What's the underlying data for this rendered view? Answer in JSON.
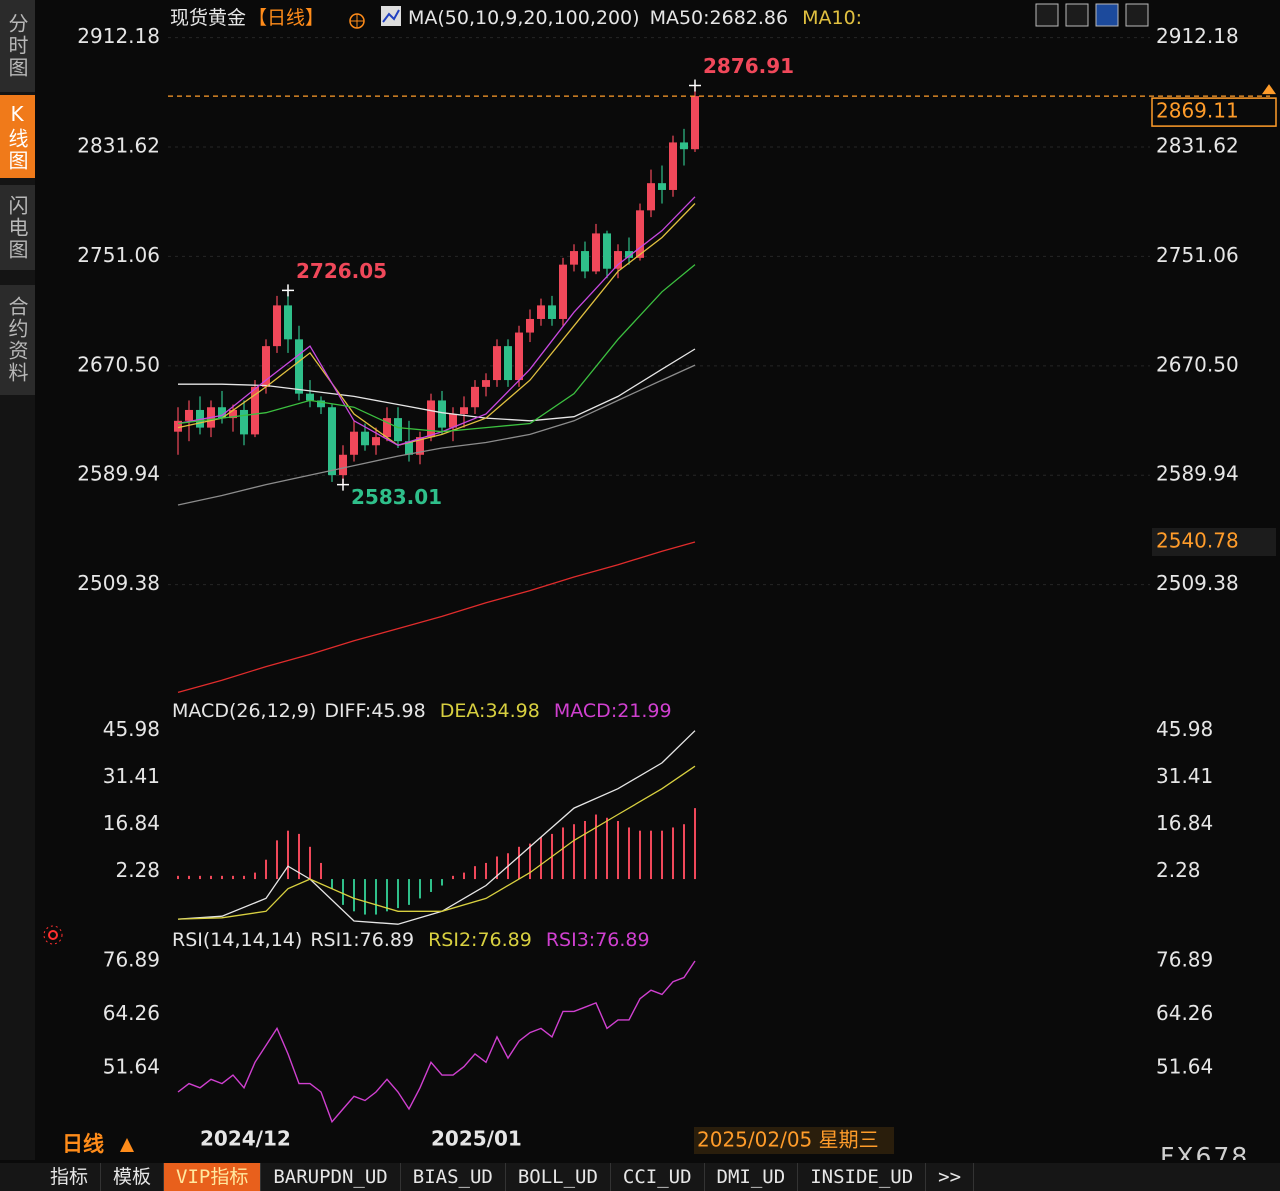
{
  "sidebar": {
    "tabs": [
      "分时图",
      "K线图",
      "闪电图",
      "合约资料"
    ],
    "active": 1
  },
  "chart_data": [
    {
      "type": "candlestick",
      "title": "现货黄金",
      "period": "【日线】",
      "indicator": "MA(50,10,9,20,100,200)",
      "categories": [
        null,
        null,
        "2024/12",
        null,
        null,
        null,
        null,
        null,
        null,
        null,
        null,
        null,
        null,
        null,
        null,
        null,
        null,
        null,
        null,
        null,
        null,
        null,
        null,
        "2025/01",
        null,
        null,
        null,
        null,
        null,
        null,
        null,
        null,
        null,
        null,
        null,
        null,
        null,
        null,
        null,
        null,
        null,
        null,
        null,
        null,
        null,
        null,
        null,
        null
      ],
      "open": [
        2622,
        2630,
        2638,
        2625,
        2640,
        2632,
        2638,
        2620,
        2655,
        2685,
        2715,
        2690,
        2650,
        2645,
        2640,
        2590,
        2605,
        2622,
        2612,
        2618,
        2632,
        2615,
        2605,
        2618,
        2645,
        2625,
        2635,
        2640,
        2655,
        2660,
        2685,
        2660,
        2695,
        2705,
        2715,
        2705,
        2745,
        2755,
        2740,
        2768,
        2742,
        2755,
        2750,
        2785,
        2805,
        2800,
        2835,
        2830
      ],
      "high": [
        2640,
        2645,
        2648,
        2645,
        2652,
        2642,
        2645,
        2660,
        2690,
        2722,
        2726.05,
        2700,
        2660,
        2648,
        2642,
        2612,
        2630,
        2628,
        2625,
        2640,
        2640,
        2630,
        2622,
        2650,
        2652,
        2640,
        2648,
        2660,
        2665,
        2690,
        2690,
        2700,
        2712,
        2720,
        2722,
        2750,
        2760,
        2762,
        2775,
        2770,
        2760,
        2765,
        2790,
        2815,
        2818,
        2840,
        2845,
        2876.91
      ],
      "low": [
        2605,
        2615,
        2620,
        2618,
        2628,
        2622,
        2612,
        2618,
        2650,
        2680,
        2680,
        2645,
        2640,
        2635,
        2585,
        2583.01,
        2600,
        2608,
        2605,
        2615,
        2610,
        2600,
        2598,
        2615,
        2620,
        2615,
        2625,
        2635,
        2648,
        2655,
        2655,
        2655,
        2688,
        2700,
        2700,
        2700,
        2740,
        2735,
        2738,
        2735,
        2735,
        2745,
        2748,
        2780,
        2790,
        2795,
        2818,
        2828
      ],
      "close": [
        2630,
        2638,
        2625,
        2640,
        2632,
        2638,
        2620,
        2655,
        2685,
        2715,
        2690,
        2650,
        2645,
        2640,
        2590,
        2605,
        2622,
        2612,
        2618,
        2632,
        2615,
        2605,
        2618,
        2645,
        2625,
        2635,
        2640,
        2655,
        2660,
        2685,
        2660,
        2695,
        2705,
        2715,
        2705,
        2745,
        2755,
        2740,
        2768,
        2742,
        2755,
        2750,
        2785,
        2805,
        2800,
        2835,
        2830,
        2869.11
      ],
      "up_color": "#f0485a",
      "down_color": "#2fbf8a",
      "annotations": [
        2876.91,
        2726.05,
        2583.01
      ],
      "last_price_line": true,
      "ma_x": [
        0,
        4,
        8,
        12,
        16,
        20,
        24,
        28,
        32,
        36,
        40,
        44,
        47
      ],
      "ma_series": [
        {
          "name": "MA50:",
          "color": "#e6e6e6",
          "values": [
            2657,
            2657,
            2656,
            2652,
            2648,
            2642,
            2636,
            2632,
            2630,
            2633,
            2648,
            2668,
            2682.86
          ]
        },
        {
          "name": "MA10:",
          "color": "#e0c040",
          "values": [
            2625,
            2632,
            2655,
            2680,
            2635,
            2612,
            2620,
            2632,
            2660,
            2700,
            2740,
            2765,
            2790
          ]
        },
        {
          "color": "#c848e0",
          "values": [
            2628,
            2634,
            2660,
            2685,
            2630,
            2612,
            2622,
            2635,
            2668,
            2710,
            2745,
            2770,
            2795
          ]
        },
        {
          "color": "#3cc040",
          "values": [
            2628,
            2632,
            2636,
            2645,
            2640,
            2625,
            2622,
            2625,
            2628,
            2650,
            2690,
            2725,
            2745
          ]
        },
        {
          "color": "#8c8c8c",
          "values": [
            2568,
            2575,
            2583,
            2590,
            2597,
            2604,
            2610,
            2614,
            2620,
            2630,
            2645,
            2660,
            2671
          ]
        },
        {
          "color": "#e02c2c",
          "price_tag": true,
          "values": [
            2430,
            2439,
            2449,
            2458,
            2468,
            2477,
            2486,
            2496,
            2505,
            2515,
            2524,
            2534,
            2540.78
          ]
        }
      ],
      "ylim": [
        2420,
        2920
      ],
      "yticks": [
        2509.38,
        2589.94,
        {
          "value": 2670.5,
          "label": "2670.50"
        },
        2751.06,
        2831.62,
        2912.18
      ],
      "grid": true
    },
    {
      "type": "macd",
      "title": "MACD(26,12,9)",
      "histogram": {
        "name": "MACD:",
        "color": "#d040d0",
        "up_color": "#f0485a",
        "down_color": "#2fbf8a",
        "values": [
          1,
          1,
          1,
          1,
          1,
          1,
          1,
          2,
          6,
          12,
          15,
          14,
          10,
          5,
          -3,
          -8,
          -10,
          -11,
          -11,
          -10,
          -9,
          -8,
          -6,
          -4,
          -2,
          1,
          2,
          4,
          5,
          7,
          8,
          10,
          11,
          13,
          14,
          16,
          17,
          18,
          20,
          19,
          18,
          16,
          15,
          15,
          15,
          16,
          17,
          21.99
        ]
      },
      "series": [
        {
          "name": "DIFF:",
          "color": "#e6e6e6",
          "x": [
            0,
            4,
            8,
            10,
            12,
            16,
            20,
            24,
            28,
            32,
            36,
            40,
            44,
            47
          ],
          "values": [
            -12.4,
            -11.5,
            -6,
            4,
            0,
            -13,
            -14,
            -10,
            -2,
            10,
            22,
            28,
            36,
            45.98
          ]
        },
        {
          "name": "DEA:",
          "color": "#d8d040",
          "x": [
            0,
            4,
            8,
            10,
            12,
            16,
            20,
            24,
            28,
            32,
            36,
            40,
            44,
            47
          ],
          "values": [
            -12.4,
            -12,
            -10,
            -3,
            0,
            -6,
            -10,
            -10,
            -6,
            2,
            12,
            20,
            28,
            34.98
          ]
        }
      ],
      "ylim": [
        -13,
        49
      ],
      "yticks": [
        2.28,
        16.84,
        31.41,
        45.98
      ]
    },
    {
      "type": "rsi",
      "title": "RSI(14,14,14)",
      "series": [
        {
          "name": "RSI1:",
          "color": "#d040d0",
          "values": [
            46,
            48,
            47,
            49,
            48,
            50,
            47,
            53,
            57,
            61,
            55,
            48,
            48,
            46,
            39,
            42,
            45,
            44,
            46,
            49,
            46,
            42,
            47,
            53,
            50,
            50,
            52,
            55,
            53,
            59,
            54,
            58,
            60,
            61,
            59,
            65,
            65,
            66,
            67,
            61,
            63,
            63,
            68,
            70,
            69,
            72,
            73,
            76.89
          ]
        }
      ],
      "other_lines": [
        {
          "name": "RSI2:",
          "color": "#d8d040",
          "value": 76.89
        },
        {
          "name": "RSI3:",
          "color": "#d040d0",
          "value": 76.89
        }
      ],
      "ylim": [
        38,
        79
      ],
      "yticks": [
        51.64,
        64.26,
        76.89
      ]
    }
  ],
  "footer": {
    "period": "日线",
    "cursor_date": "2025/02/05 星期三",
    "watermark": "FX678"
  },
  "tabs": {
    "items": [
      "指标",
      "模板",
      "VIP指标",
      "BARUPDN_UD",
      "BIAS_UD",
      "BOLL_UD",
      "CCI_UD",
      "DMI_UD",
      "INSIDE_UD",
      ">>"
    ],
    "active": 2
  }
}
